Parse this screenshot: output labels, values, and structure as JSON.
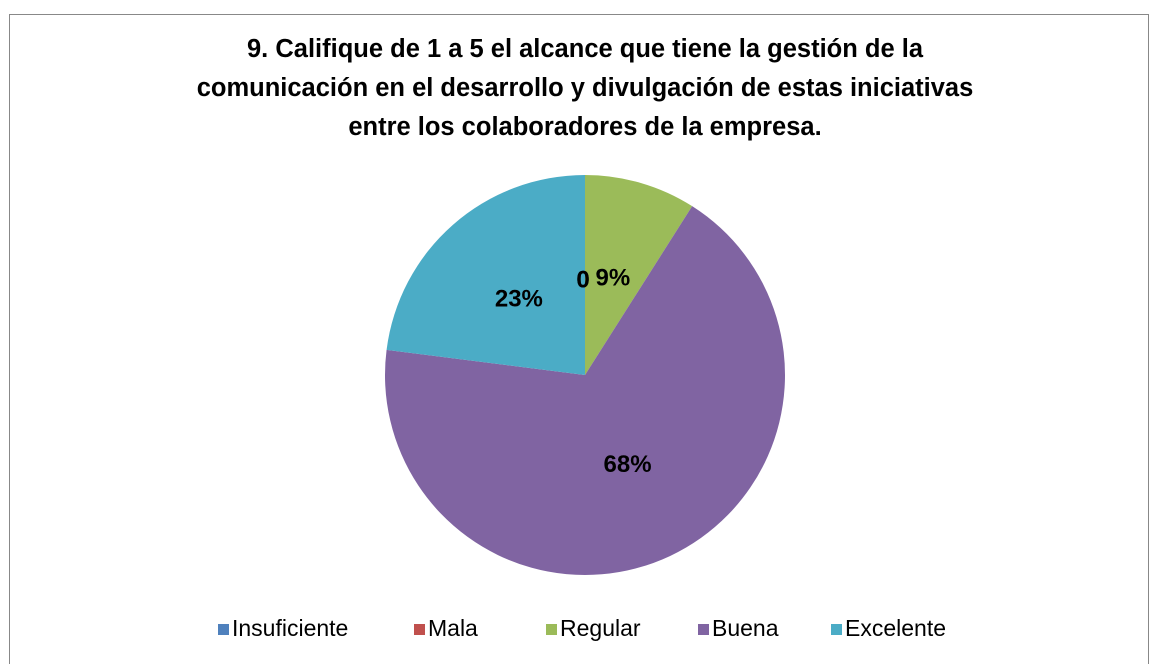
{
  "chart_data": {
    "type": "pie",
    "title": "9. Califique de 1 a 5 el alcance que tiene la gestión de la comunicación en el desarrollo y divulgación de estas iniciativas entre los colaboradores de la empresa.",
    "categories": [
      "Insuficiente",
      "Mala",
      "Regular",
      "Buena",
      "Excelente"
    ],
    "values": [
      0,
      0,
      9,
      68,
      23
    ],
    "value_labels": [
      "0",
      "0",
      "9%",
      "68%",
      "23%"
    ],
    "colors": [
      "#4f81bd",
      "#c0504d",
      "#9bbb59",
      "#8064a2",
      "#4bacc6"
    ],
    "legend": "bottom"
  }
}
